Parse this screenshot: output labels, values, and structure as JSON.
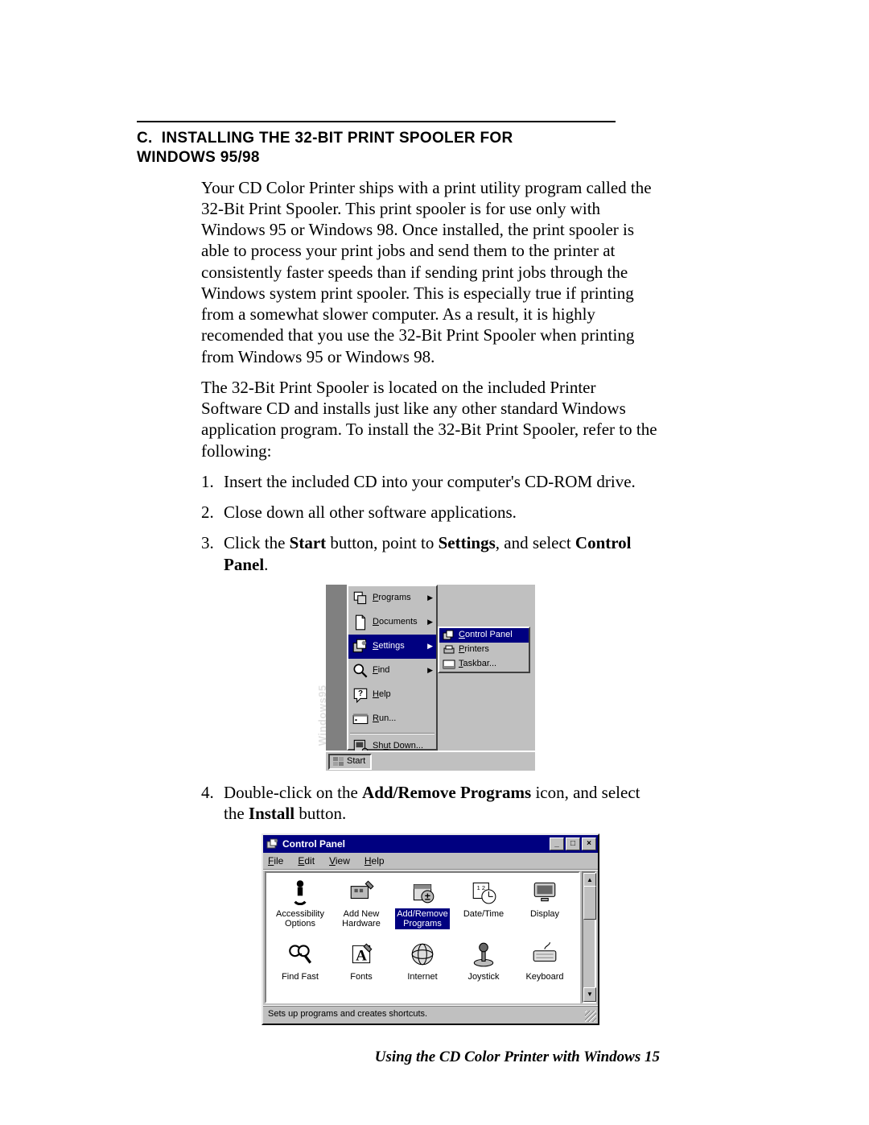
{
  "section": {
    "label": "C.",
    "title": "INSTALLING THE 32-BIT PRINT SPOOLER FOR WINDOWS 95/98"
  },
  "para1": "Your CD Color Printer ships with a print utility program called the 32-Bit Print Spooler. This print spooler is for use only with Windows 95 or Windows 98. Once installed, the print spooler is able to process your print jobs and send them to the printer at consistently faster speeds than if sending print jobs through the Windows system print spooler. This is especially true if printing from a somewhat slower computer. As a result, it is highly recomended that you use the 32-Bit Print Spooler when printing from Windows 95 or Windows 98.",
  "para2": "The 32-Bit Print Spooler is located on the included Printer Software CD and installs just like any other standard Windows application program. To install the 32-Bit Print Spooler, refer to the following:",
  "steps": [
    {
      "n": "1.",
      "text_pre": "",
      "text": "Insert the included CD into your computer's CD-ROM drive."
    },
    {
      "n": "2.",
      "text": "Close down all other software applications."
    },
    {
      "n": "3.",
      "pre": "Click the ",
      "b1": "Start",
      "mid1": " button, point to ",
      "b2": "Settings",
      "mid2": ", and select ",
      "b3": "Control Panel",
      "post": "."
    },
    {
      "n": "4.",
      "pre": "Double-click on the ",
      "b1": "Add/Remove Programs",
      "mid1": " icon, and select the ",
      "b2": "Install",
      "post": " button."
    }
  ],
  "start_menu": {
    "side_label": "Windows95",
    "items": [
      {
        "icon": "programs",
        "label": "Programs",
        "u": "P",
        "arrow": true,
        "sel": false
      },
      {
        "icon": "documents",
        "label": "Documents",
        "u": "D",
        "arrow": true,
        "sel": false
      },
      {
        "icon": "settings",
        "label": "Settings",
        "u": "S",
        "arrow": true,
        "sel": true
      },
      {
        "icon": "find",
        "label": "Find",
        "u": "F",
        "arrow": true,
        "sel": false
      },
      {
        "icon": "help",
        "label": "Help",
        "u": "H",
        "arrow": false,
        "sel": false
      },
      {
        "icon": "run",
        "label": "Run...",
        "u": "R",
        "arrow": false,
        "sel": false
      }
    ],
    "shutdown": {
      "icon": "shutdown",
      "label": "Shut Down...",
      "u": "u"
    },
    "submenu": [
      {
        "icon": "cpanel",
        "label": "Control Panel",
        "u": "C",
        "sel": true
      },
      {
        "icon": "printers",
        "label": "Printers",
        "u": "P",
        "sel": false
      },
      {
        "icon": "taskbar",
        "label": "Taskbar...",
        "u": "T",
        "sel": false
      }
    ],
    "start_button_label": "Start",
    "colors": {
      "face": "#c0c0c0",
      "hilite": "#000080",
      "shadow": "#808080"
    }
  },
  "control_panel": {
    "title": "Control Panel",
    "menus": [
      "File",
      "Edit",
      "View",
      "Help"
    ],
    "menu_u": [
      "F",
      "E",
      "V",
      "H"
    ],
    "icons": [
      {
        "label": "Accessibility Options",
        "sel": false,
        "icon": "access"
      },
      {
        "label": "Add New Hardware",
        "sel": false,
        "icon": "addhw"
      },
      {
        "label": "Add/Remove Programs",
        "sel": true,
        "icon": "addrm"
      },
      {
        "label": "Date/Time",
        "sel": false,
        "icon": "datetime"
      },
      {
        "label": "Display",
        "sel": false,
        "icon": "display"
      },
      {
        "label": "Find Fast",
        "sel": false,
        "icon": "findfast"
      },
      {
        "label": "Fonts",
        "sel": false,
        "icon": "fonts"
      },
      {
        "label": "Internet",
        "sel": false,
        "icon": "internet"
      },
      {
        "label": "Joystick",
        "sel": false,
        "icon": "joystick"
      },
      {
        "label": "Keyboard",
        "sel": false,
        "icon": "keyboard"
      }
    ],
    "status": "Sets up programs and creates shortcuts.",
    "colors": {
      "face": "#c0c0c0",
      "title_bg": "#000080",
      "sel_bg": "#000080",
      "view_bg": "#ffffff"
    }
  },
  "footer": "Using the CD Color Printer with Windows 15"
}
